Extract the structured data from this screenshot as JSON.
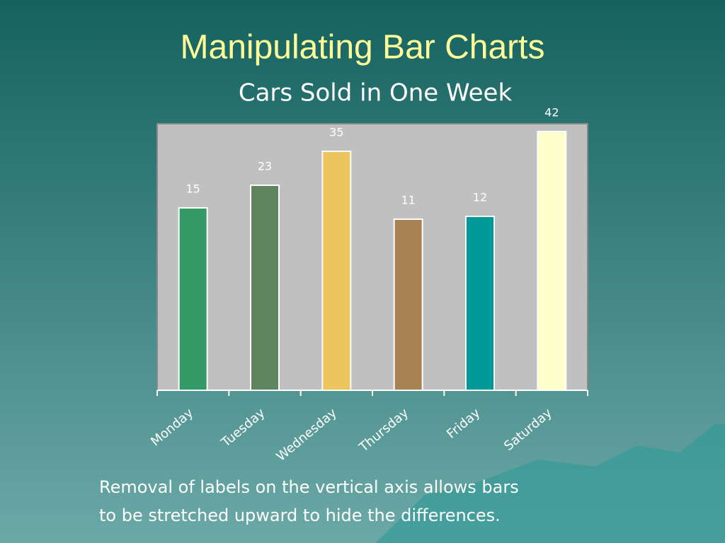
{
  "slide_title": "Manipulating Bar Charts",
  "chart_data": {
    "type": "bar",
    "title": "Cars Sold in One Week",
    "categories": [
      "Monday",
      "Tuesday",
      "Wednesday",
      "Thursday",
      "Friday",
      "Saturday"
    ],
    "values": [
      15,
      23,
      35,
      11,
      12,
      42
    ],
    "colors": [
      "#339966",
      "#5f8560",
      "#ecc55e",
      "#a68254",
      "#009999",
      "#ffffcc"
    ],
    "ylim": [
      -49.5,
      44.75
    ],
    "grid": false
  },
  "body": [
    "Removal of labels on the vertical axis allows bars",
    "to be stretched upward to hide the differences."
  ]
}
